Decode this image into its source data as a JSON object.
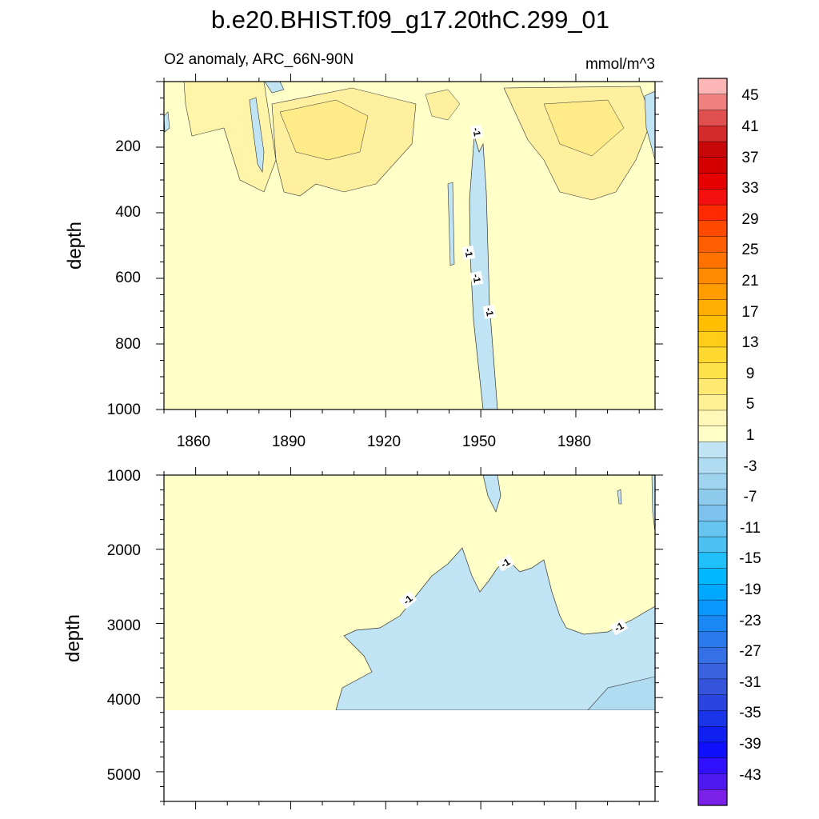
{
  "chart_data": {
    "type": "heatmap",
    "title": "b.e20.BHIST.f09_g17.20thC.299_01",
    "subtitle_left": "O2 anomaly, ARC_66N-90N",
    "subtitle_right": "mmol/m^3",
    "ylabel": "depth",
    "x_ticks": [
      "1860",
      "1890",
      "1920",
      "1950",
      "1980"
    ],
    "x_range": [
      1850,
      2005
    ],
    "upper_panel": {
      "ylim": [
        0,
        1000
      ],
      "y_ticks": [
        "200",
        "400",
        "600",
        "800",
        "1000"
      ],
      "contour_labels": [
        "-1",
        "-1",
        "-1",
        "-1"
      ]
    },
    "lower_panel": {
      "ylim": [
        1000,
        5400
      ],
      "y_ticks": [
        "1000",
        "2000",
        "3000",
        "4000",
        "5000"
      ],
      "contour_labels": [
        "-1",
        "-1",
        "-1"
      ],
      "data_bottom_depth": 4120
    },
    "colorbar": {
      "labels": [
        "45",
        "41",
        "37",
        "33",
        "29",
        "25",
        "21",
        "17",
        "13",
        "9",
        "5",
        "1",
        "-3",
        "-7",
        "-11",
        "-15",
        "-19",
        "-23",
        "-27",
        "-31",
        "-35",
        "-39",
        "-43"
      ],
      "colors_top_to_bottom": [
        "#fcb6b6",
        "#f08080",
        "#e05050",
        "#d42a2a",
        "#c80808",
        "#d40000",
        "#e60000",
        "#f51010",
        "#ff2a00",
        "#ff4a00",
        "#ff5f00",
        "#ff7200",
        "#ff8a00",
        "#ff9c00",
        "#ffae00",
        "#ffbe00",
        "#ffcc18",
        "#ffd830",
        "#ffe14a",
        "#ffe970",
        "#fff096",
        "#fff8b8",
        "#ffffc8",
        "#c0e4f4",
        "#afdcf0",
        "#9ed4ee",
        "#8dcaec",
        "#7cc2ec",
        "#66c4ee",
        "#4cc0f0",
        "#20c0fa",
        "#00b8ff",
        "#00a8ff",
        "#0a98ff",
        "#1a88f4",
        "#2a7aee",
        "#3670e6",
        "#3a62e0",
        "#3454dc",
        "#2a44e0",
        "#1a34e8",
        "#1020f0",
        "#1010ff",
        "#3010ff",
        "#5018f0",
        "#7a20e8"
      ]
    }
  }
}
